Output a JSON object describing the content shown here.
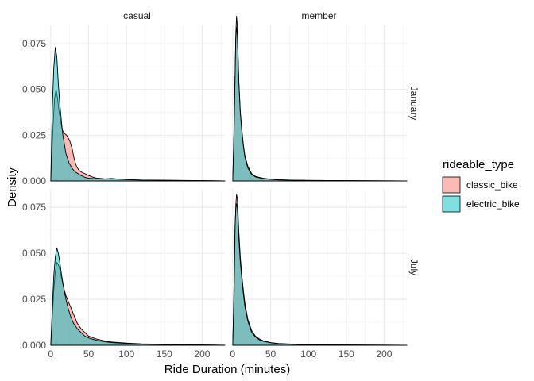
{
  "chart_data": {
    "type": "area",
    "subtype": "density",
    "facet_columns": [
      "casual",
      "member"
    ],
    "facet_rows": [
      "January",
      "July"
    ],
    "xlabel": "Ride Duration (minutes)",
    "ylabel": "Density",
    "xlim": [
      -2,
      230
    ],
    "x_ticks": [
      0,
      50,
      100,
      150,
      200
    ],
    "x_tick_labels": [
      "0",
      "50",
      "100",
      "150",
      "200"
    ],
    "y_ticks": [
      0,
      0.025,
      0.05,
      0.075
    ],
    "y_tick_labels": [
      "0.000",
      "0.025",
      "0.050",
      "0.075"
    ],
    "grid": true,
    "legend": {
      "title": "rideable_type",
      "position": "right",
      "entries": [
        {
          "name": "classic_bike",
          "color": "#F8766D"
        },
        {
          "name": "electric_bike",
          "color": "#00BFC4"
        }
      ]
    },
    "panels": [
      {
        "row": "January",
        "col": "casual",
        "ylim": [
          0,
          0.085
        ],
        "series": [
          {
            "name": "classic_bike",
            "x": [
              0,
              3,
              5,
              7,
              9,
              11,
              13,
              15,
              18,
              21,
              25,
              28,
              31,
              34,
              37,
              40,
              45,
              50,
              55,
              60,
              70,
              80,
              90,
              100,
              120,
              150,
              200,
              230
            ],
            "y": [
              0,
              0.03,
              0.045,
              0.05,
              0.045,
              0.038,
              0.033,
              0.028,
              0.026,
              0.025,
              0.022,
              0.018,
              0.012,
              0.008,
              0.006,
              0.005,
              0.004,
              0.003,
              0.0022,
              0.0016,
              0.0012,
              0.0011,
              0.001,
              0.0007,
              0.0004,
              0.0003,
              0.0002,
              0
            ]
          },
          {
            "name": "electric_bike",
            "x": [
              0,
              2,
              4,
              6,
              8,
              10,
              12,
              14,
              16,
              20,
              24,
              28,
              32,
              36,
              40,
              45,
              50,
              60,
              70,
              80,
              90,
              100,
              120,
              150,
              200,
              230
            ],
            "y": [
              0,
              0.04,
              0.062,
              0.073,
              0.068,
              0.053,
              0.042,
              0.033,
              0.025,
              0.015,
              0.01,
              0.007,
              0.005,
              0.004,
              0.003,
              0.002,
              0.0015,
              0.0012,
              0.001,
              0.0014,
              0.001,
              0.0008,
              0.0005,
              0.0004,
              0.0002,
              0
            ]
          }
        ]
      },
      {
        "row": "January",
        "col": "member",
        "ylim": [
          0,
          0.085
        ],
        "series": [
          {
            "name": "classic_bike",
            "x": [
              0,
              2,
              4,
              5,
              6,
              7,
              8,
              10,
              12,
              14,
              16,
              20,
              25,
              30,
              40,
              50,
              60,
              80,
              100,
              150,
              200,
              230
            ],
            "y": [
              0,
              0.03,
              0.08,
              0.09,
              0.085,
              0.07,
              0.055,
              0.038,
              0.028,
              0.02,
              0.014,
              0.008,
              0.004,
              0.0025,
              0.0015,
              0.001,
              0.0007,
              0.0004,
              0.0003,
              0.0002,
              0.0001,
              0
            ]
          },
          {
            "name": "electric_bike",
            "x": [
              0,
              2,
              4,
              5,
              6,
              7,
              8,
              10,
              12,
              14,
              16,
              20,
              25,
              30,
              40,
              50,
              60,
              80,
              100,
              150,
              200,
              230
            ],
            "y": [
              0,
              0.035,
              0.078,
              0.084,
              0.08,
              0.068,
              0.054,
              0.037,
              0.027,
              0.019,
              0.013,
              0.007,
              0.0035,
              0.0022,
              0.0013,
              0.0009,
              0.0006,
              0.0004,
              0.0003,
              0.0002,
              0.0001,
              0
            ]
          }
        ]
      },
      {
        "row": "July",
        "col": "casual",
        "ylim": [
          0,
          0.085
        ],
        "series": [
          {
            "name": "classic_bike",
            "x": [
              0,
              2,
              4,
              6,
              8,
              10,
              12,
              14,
              16,
              18,
              20,
              23,
              26,
              30,
              35,
              40,
              45,
              50,
              60,
              70,
              80,
              100,
              120,
              150,
              200,
              230
            ],
            "y": [
              0,
              0.015,
              0.03,
              0.04,
              0.045,
              0.044,
              0.041,
              0.037,
              0.033,
              0.03,
              0.027,
              0.024,
              0.021,
              0.017,
              0.012,
              0.009,
              0.007,
              0.005,
              0.0035,
              0.0025,
              0.0018,
              0.0012,
              0.0008,
              0.0005,
              0.0002,
              0
            ]
          },
          {
            "name": "electric_bike",
            "x": [
              0,
              2,
              4,
              6,
              8,
              10,
              12,
              14,
              16,
              18,
              20,
              23,
              26,
              30,
              35,
              40,
              45,
              50,
              60,
              70,
              80,
              100,
              120,
              150,
              200,
              230
            ],
            "y": [
              0,
              0.02,
              0.038,
              0.048,
              0.053,
              0.05,
              0.045,
              0.039,
              0.034,
              0.029,
              0.025,
              0.02,
              0.016,
              0.012,
              0.009,
              0.007,
              0.005,
              0.004,
              0.0028,
              0.002,
              0.0015,
              0.001,
              0.0006,
              0.0004,
              0.0002,
              0
            ]
          }
        ]
      },
      {
        "row": "July",
        "col": "member",
        "ylim": [
          0,
          0.085
        ],
        "series": [
          {
            "name": "classic_bike",
            "x": [
              0,
              2,
              3,
              4,
              5,
              6,
              7,
              8,
              10,
              12,
              14,
              16,
              20,
              25,
              30,
              35,
              40,
              50,
              60,
              80,
              100,
              150,
              200,
              230
            ],
            "y": [
              0,
              0.03,
              0.06,
              0.076,
              0.082,
              0.08,
              0.072,
              0.062,
              0.048,
              0.038,
              0.03,
              0.023,
              0.014,
              0.008,
              0.005,
              0.0035,
              0.0025,
              0.0015,
              0.001,
              0.0006,
              0.0004,
              0.0002,
              0.0001,
              0
            ]
          },
          {
            "name": "electric_bike",
            "x": [
              0,
              2,
              3,
              4,
              5,
              6,
              7,
              8,
              10,
              12,
              14,
              16,
              20,
              25,
              30,
              35,
              40,
              50,
              60,
              80,
              100,
              150,
              200,
              230
            ],
            "y": [
              0,
              0.04,
              0.065,
              0.074,
              0.077,
              0.075,
              0.068,
              0.058,
              0.045,
              0.036,
              0.028,
              0.021,
              0.013,
              0.007,
              0.0045,
              0.003,
              0.0022,
              0.0014,
              0.0009,
              0.0005,
              0.0003,
              0.0002,
              0.0001,
              0
            ]
          }
        ]
      }
    ]
  }
}
